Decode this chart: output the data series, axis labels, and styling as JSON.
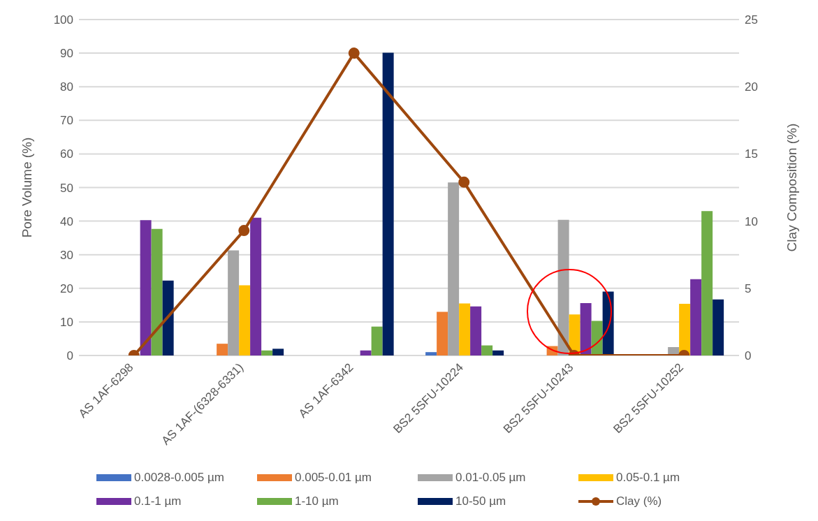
{
  "chart_data": {
    "type": "bar",
    "ylabel": "Pore Volume (%)",
    "y2label": "Clay Composition (%)",
    "categories": [
      "AS 1AF-6298",
      "AS 1AF-(6328-6331)",
      "AS 1AF-6342",
      "BS2 5SFU-10224",
      "BS2 5SFU-10243",
      "BS2 5SFU-10252"
    ],
    "series": [
      {
        "name": "0.0028-0.005 µm",
        "color": "#4472c4",
        "values": [
          0,
          0,
          0,
          1,
          0,
          0
        ]
      },
      {
        "name": "0.005-0.01 µm",
        "color": "#ed7d31",
        "values": [
          0,
          3.5,
          0,
          13,
          2.8,
          0
        ]
      },
      {
        "name": "0.01-0.05 µm",
        "color": "#a5a5a5",
        "values": [
          0,
          31.3,
          0,
          51.5,
          40.4,
          2.5
        ]
      },
      {
        "name": "0.05-0.1 µm",
        "color": "#ffc000",
        "values": [
          0,
          20.9,
          0,
          15.5,
          12.2,
          15.4
        ]
      },
      {
        "name": "0.1-1 µm",
        "color": "#7030a0",
        "values": [
          40.3,
          41,
          1.5,
          14.6,
          15.6,
          22.7
        ]
      },
      {
        "name": "1-10 µm",
        "color": "#70ad47",
        "values": [
          37.7,
          1.5,
          8.6,
          3,
          10.3,
          43
        ]
      },
      {
        "name": "10-50 µm",
        "color": "#002060",
        "values": [
          22.3,
          2,
          90.1,
          1.5,
          19,
          16.7
        ]
      },
      {
        "name": "Clay (%)",
        "type": "line",
        "axis": "y2",
        "color": "#9e480e",
        "marker": "circle",
        "values": [
          0,
          9.3,
          22.5,
          12.9,
          0,
          0
        ]
      }
    ],
    "ylim": [
      0,
      100
    ],
    "yticks": [
      0,
      10,
      20,
      30,
      40,
      50,
      60,
      70,
      80,
      90,
      100
    ],
    "y2lim": [
      0,
      25
    ],
    "y2ticks": [
      0,
      5,
      10,
      15,
      20,
      25
    ],
    "grid": "y",
    "legend": "bottom"
  }
}
